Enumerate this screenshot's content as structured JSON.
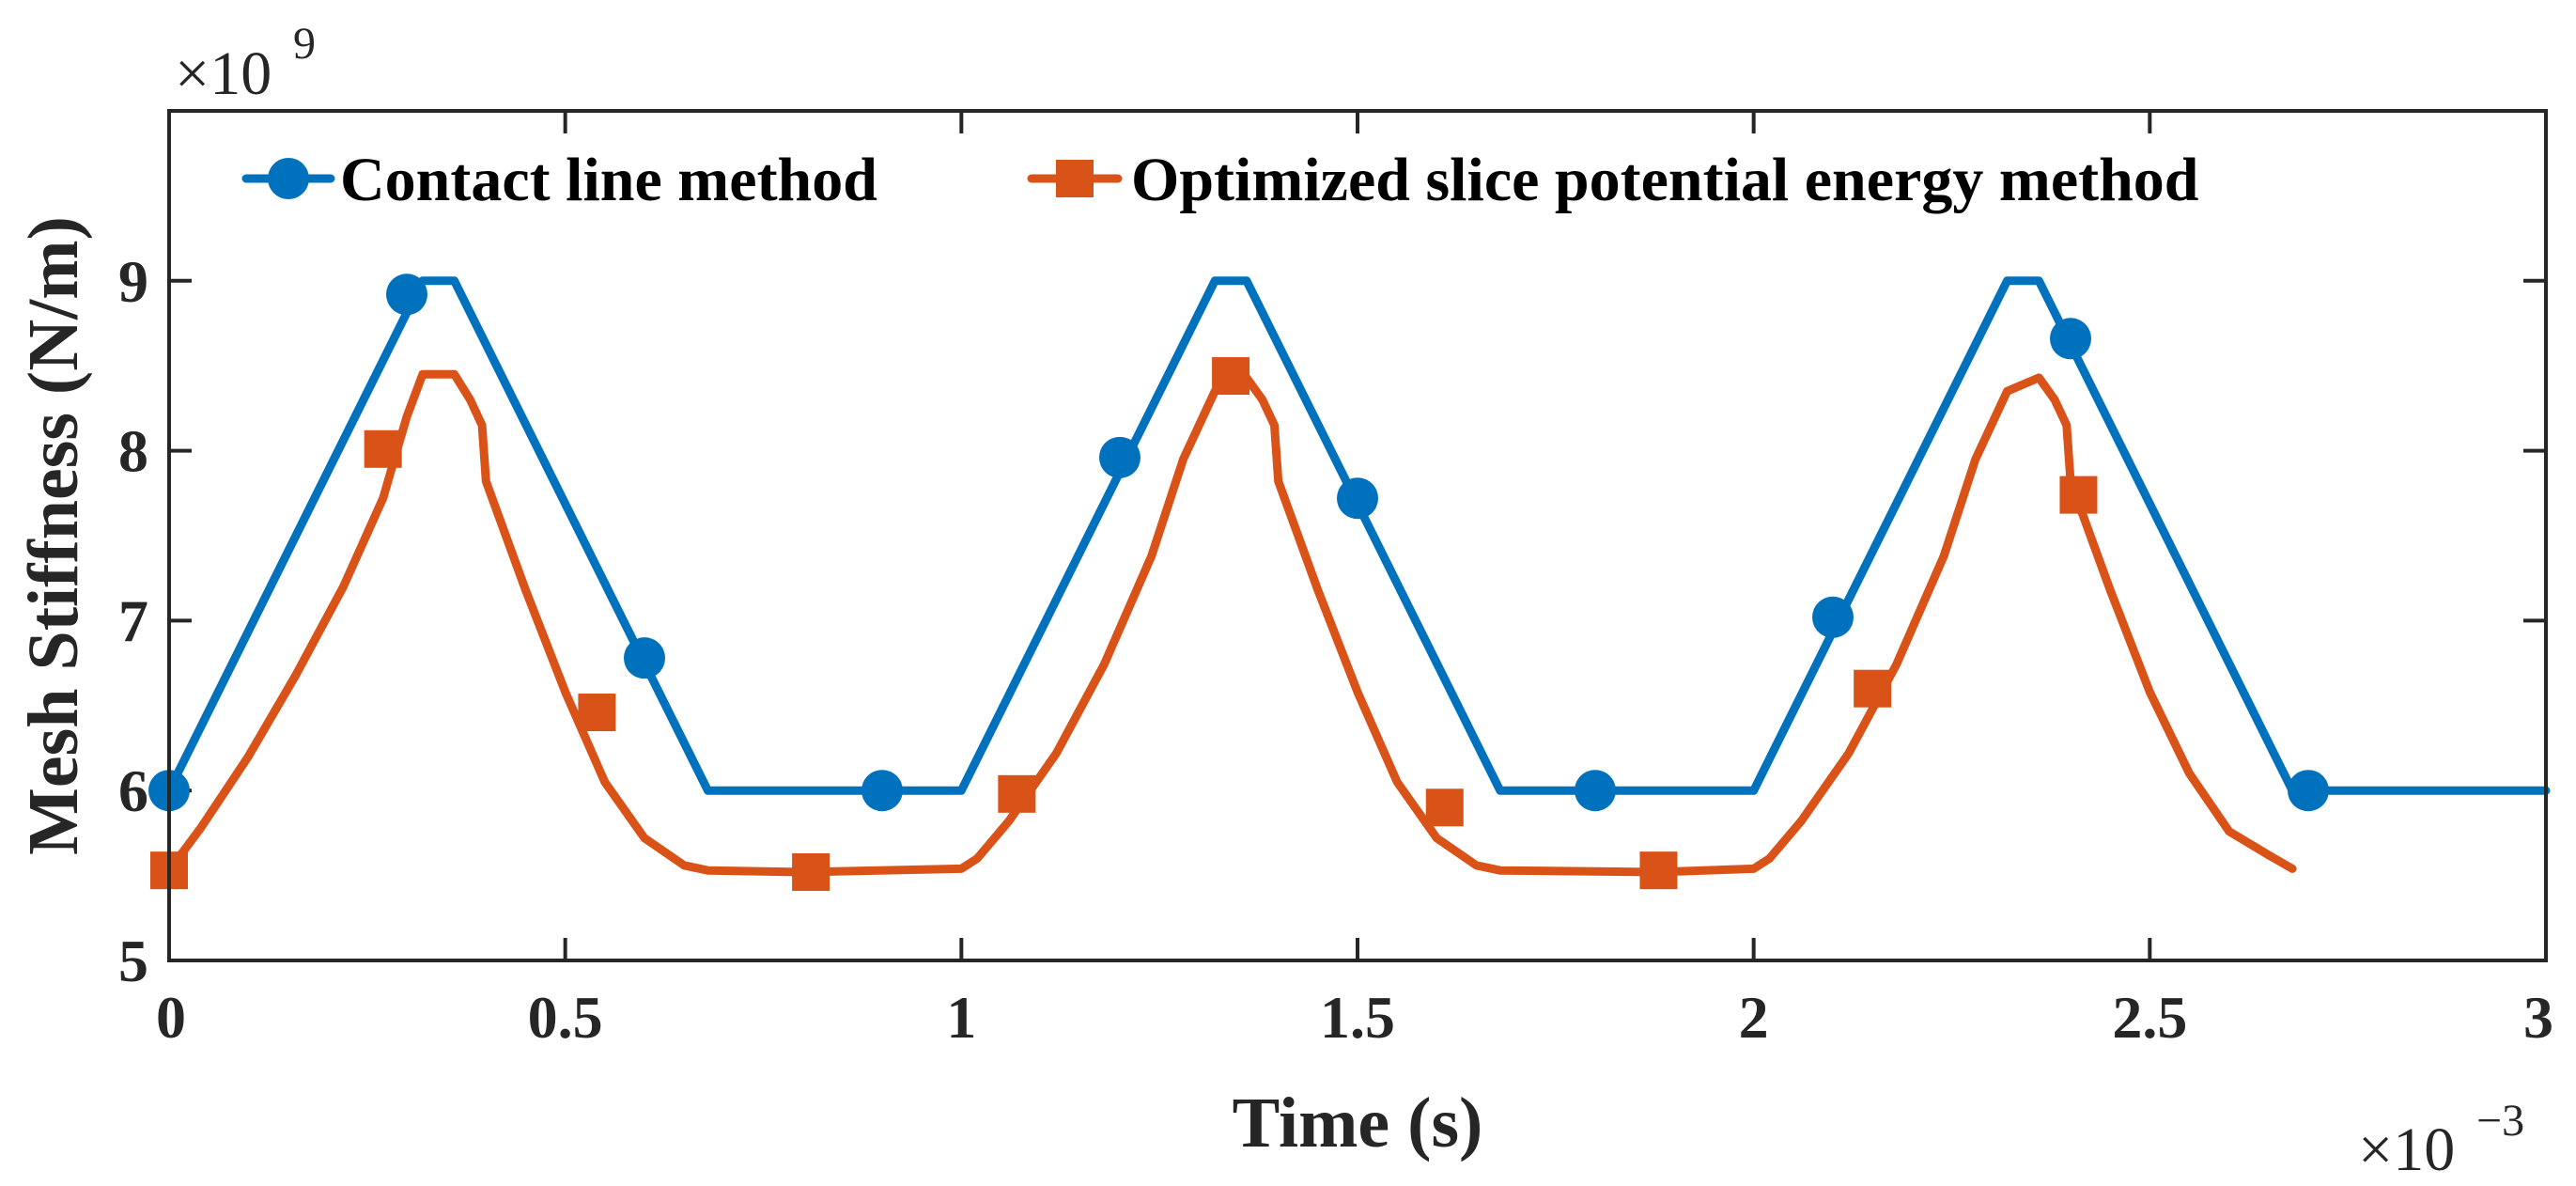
{
  "chart_data": {
    "type": "line",
    "title": "",
    "xlabel": "Time (s)",
    "ylabel": "Mesh Stiffness (N/m)",
    "x_exponent_prefix": "×10",
    "x_exponent_value": "−3",
    "y_exponent_prefix": "×10",
    "y_exponent_value": "9",
    "xlim": [
      0,
      3
    ],
    "ylim": [
      5,
      10
    ],
    "xticks": [
      0,
      0.5,
      1,
      1.5,
      2,
      2.5,
      3
    ],
    "xtick_labels": [
      "0",
      "0.5",
      "1",
      "1.5",
      "2",
      "2.5",
      "3"
    ],
    "yticks": [
      5,
      6,
      7,
      8,
      9
    ],
    "ytick_labels": [
      "5",
      "6",
      "7",
      "8",
      "9"
    ],
    "grid": false,
    "legend_position": "top",
    "series": [
      {
        "name": "Contact line method",
        "color": "#0072BD",
        "marker": "circle",
        "x": [
          0,
          0.32,
          0.36,
          0.68,
          1.0,
          1.32,
          1.36,
          1.68,
          2.0,
          2.32,
          2.36,
          2.68,
          3.0
        ],
        "y": [
          6.0,
          9.0,
          9.0,
          6.0,
          6.0,
          9.0,
          9.0,
          6.0,
          6.0,
          9.0,
          9.0,
          6.0,
          6.0
        ],
        "marker_x": [
          0,
          0.3,
          0.6,
          0.9,
          1.2,
          1.5,
          1.8,
          2.1,
          2.4,
          2.7
        ],
        "marker_y": [
          6.0,
          8.92,
          6.78,
          6.0,
          7.96,
          7.72,
          6.0,
          7.02,
          8.66,
          6.0
        ]
      },
      {
        "name": "Optimized slice potential energy method",
        "color": "#D95319",
        "marker": "square",
        "x": [
          0,
          0.04,
          0.1,
          0.16,
          0.22,
          0.27,
          0.3,
          0.32,
          0.36,
          0.38,
          0.395,
          0.4,
          0.45,
          0.5,
          0.55,
          0.6,
          0.65,
          0.68,
          0.8,
          1.0,
          1.02,
          1.06,
          1.12,
          1.18,
          1.24,
          1.28,
          1.32,
          1.36,
          1.38,
          1.395,
          1.4,
          1.45,
          1.5,
          1.55,
          1.6,
          1.65,
          1.68,
          1.88,
          2.0,
          2.02,
          2.06,
          2.12,
          2.18,
          2.24,
          2.28,
          2.32,
          2.36,
          2.38,
          2.395,
          2.4,
          2.45,
          2.5,
          2.55,
          2.6,
          2.65,
          2.68
        ],
        "y": [
          5.53,
          5.78,
          6.2,
          6.68,
          7.2,
          7.72,
          8.2,
          8.45,
          8.45,
          8.3,
          8.15,
          7.82,
          7.18,
          6.58,
          6.05,
          5.72,
          5.56,
          5.53,
          5.52,
          5.54,
          5.6,
          5.82,
          6.22,
          6.74,
          7.38,
          7.95,
          8.35,
          8.43,
          8.3,
          8.15,
          7.82,
          7.18,
          6.58,
          6.05,
          5.72,
          5.56,
          5.53,
          5.52,
          5.54,
          5.6,
          5.82,
          6.22,
          6.74,
          7.38,
          7.95,
          8.35,
          8.43,
          8.3,
          8.15,
          7.82,
          7.18,
          6.58,
          6.1,
          5.76,
          5.62,
          5.54
        ],
        "marker_x": [
          0,
          0.27,
          0.54,
          0.81,
          1.07,
          1.34,
          1.61,
          1.88,
          2.15,
          2.41
        ],
        "marker_y": [
          5.53,
          8.01,
          6.46,
          5.52,
          5.98,
          8.44,
          5.9,
          5.53,
          6.6,
          7.74
        ]
      }
    ]
  }
}
